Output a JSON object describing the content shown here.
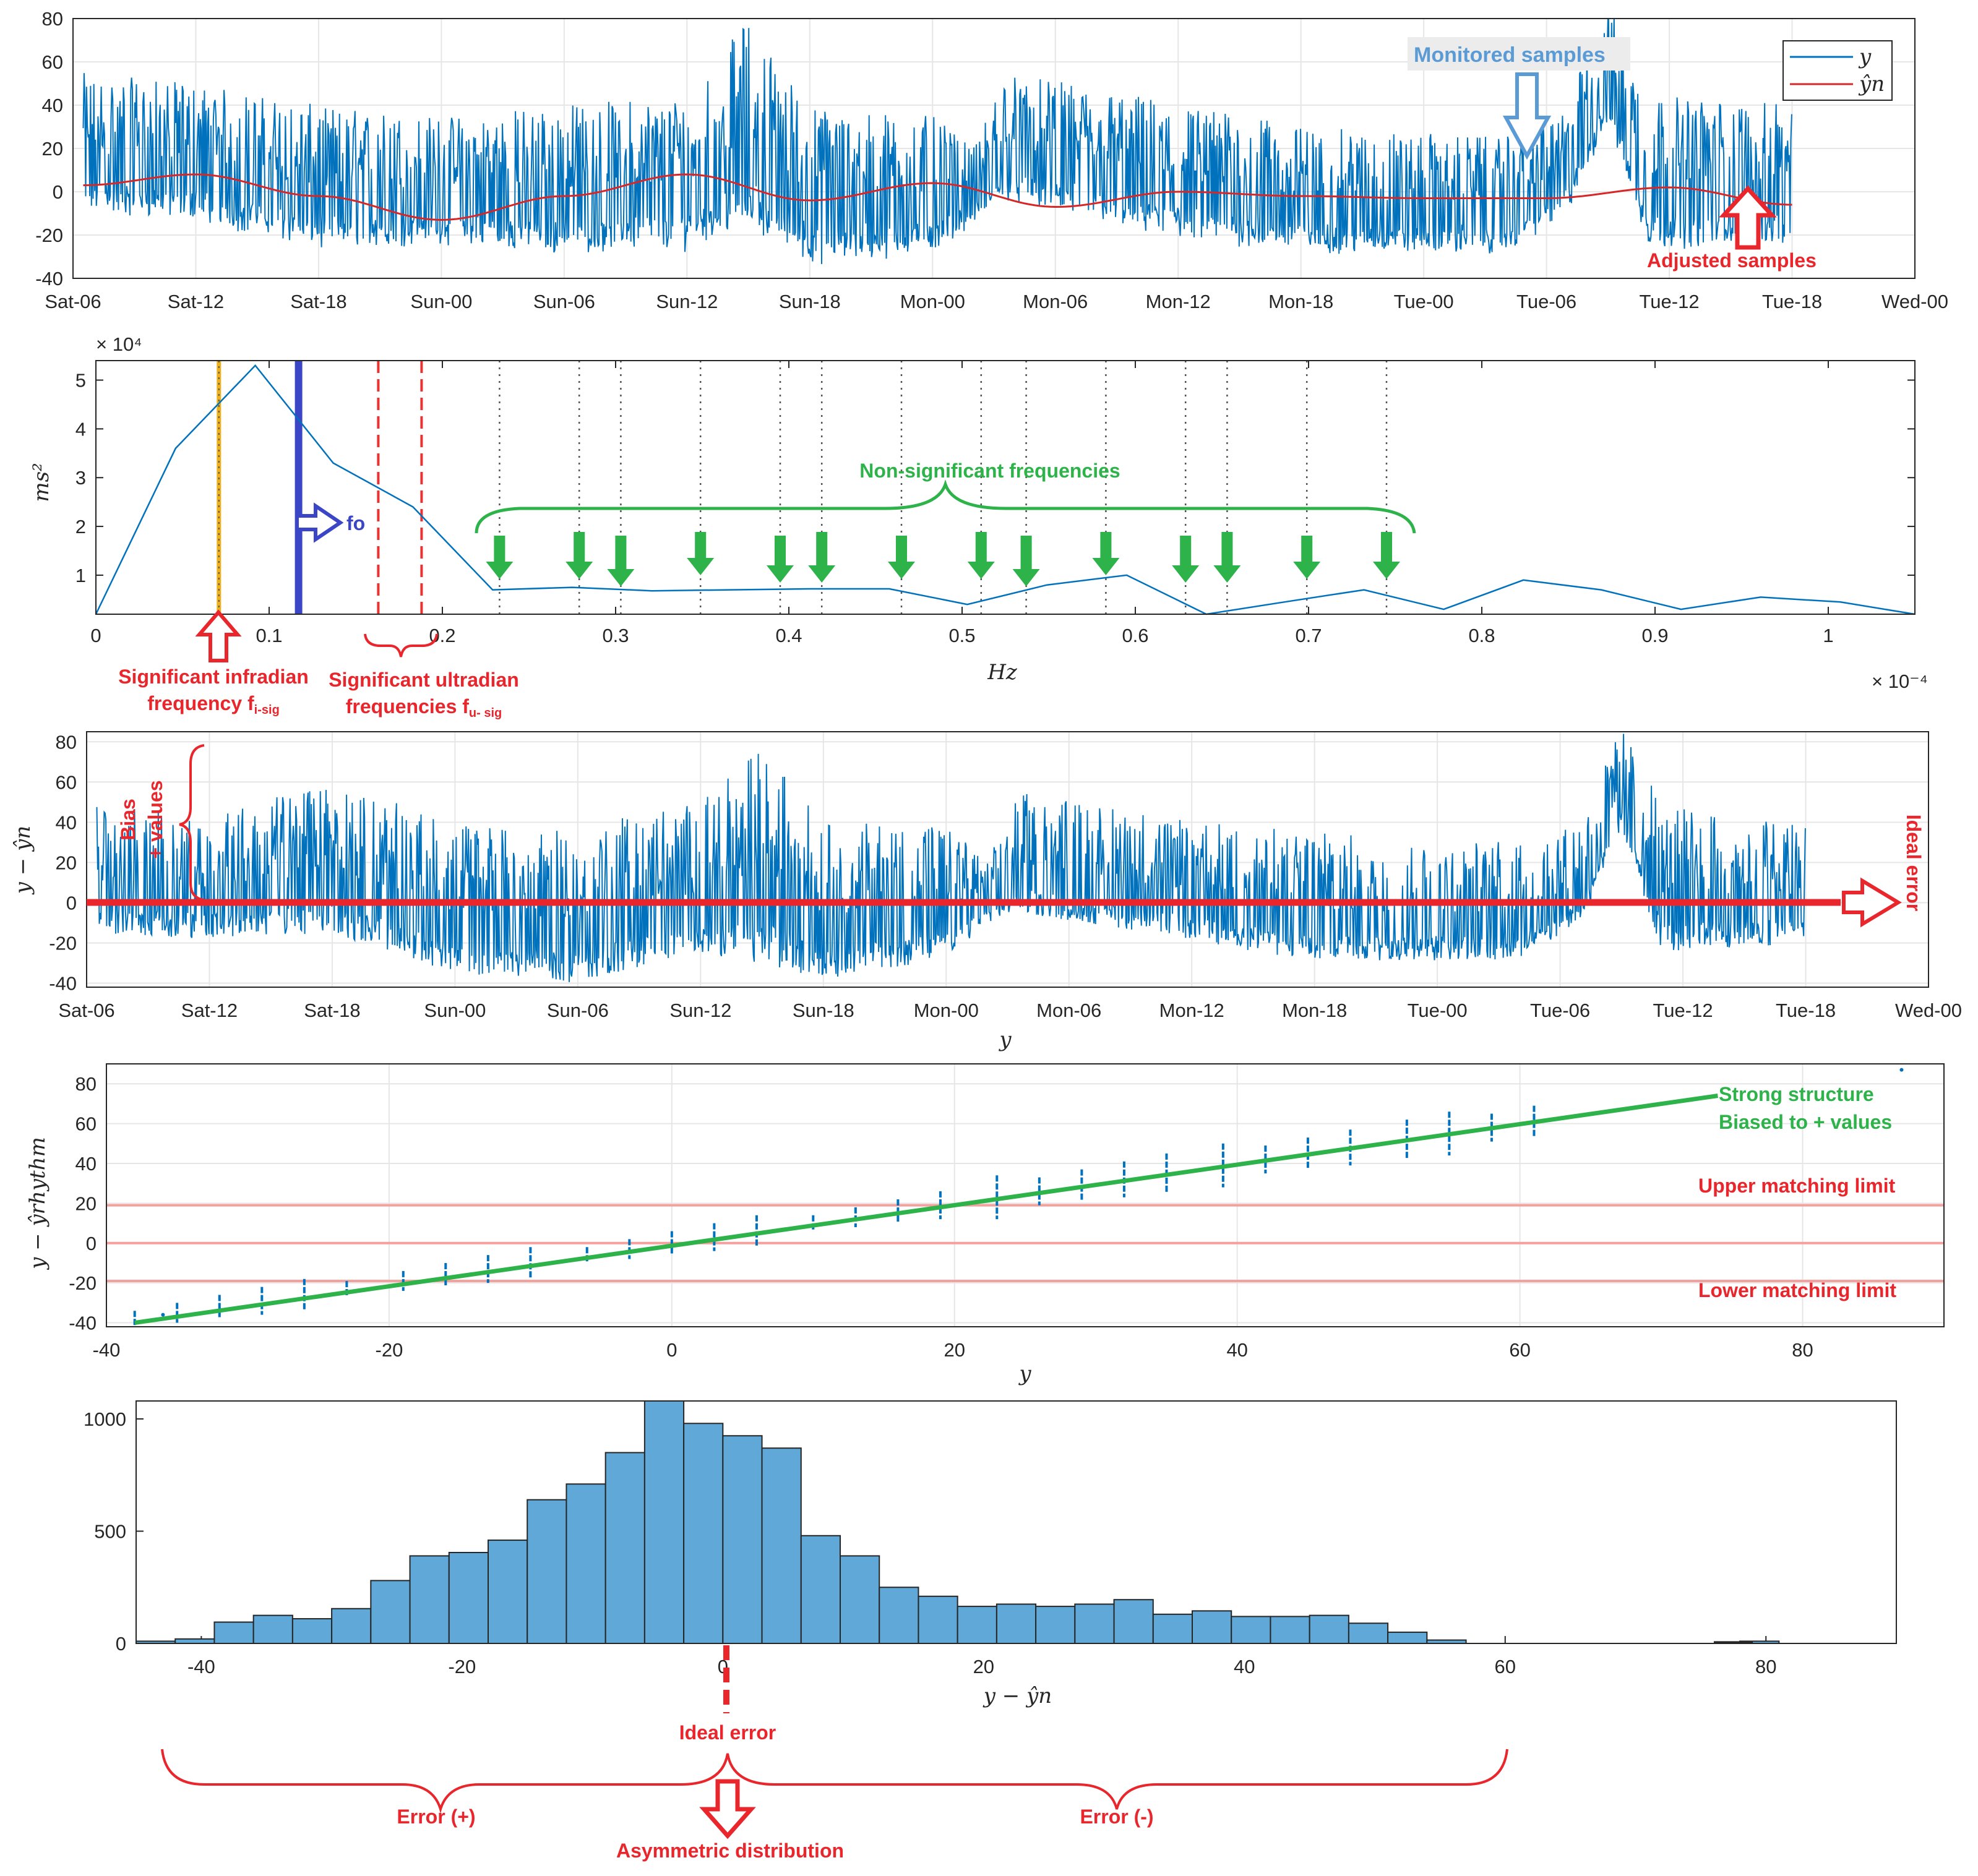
{
  "colors": {
    "signal": "#0072bd",
    "fit": "#d62728",
    "annotation_red": "#e8262c",
    "annotation_green": "#2db34a",
    "annotation_blue": "#5b9bd5",
    "bars": "#5fa8d8",
    "fo_line": "#3b46c6",
    "infradian": "#edb120"
  },
  "chart_data": [
    {
      "id": "timeseries",
      "type": "line",
      "x_ticks": [
        "Sat-06",
        "Sat-12",
        "Sat-18",
        "Sun-00",
        "Sun-06",
        "Sun-12",
        "Sun-18",
        "Mon-00",
        "Mon-06",
        "Mon-12",
        "Mon-18",
        "Tue-00",
        "Tue-06",
        "Tue-12",
        "Tue-18",
        "Wed-00"
      ],
      "ylim": [
        -40,
        80
      ],
      "y_ticks": [
        80,
        60,
        40,
        20,
        0,
        -20,
        -40
      ],
      "x_hours_range": [
        0,
        90
      ],
      "legend": {
        "placement": "top-right",
        "entries": [
          "y",
          "ŷn"
        ]
      },
      "series": [
        {
          "name": "y",
          "kind": "noisy-signal",
          "data_hours_range": [
            0.5,
            84
          ],
          "envelope": [
            [
              0.5,
              -12,
              55
            ],
            [
              6,
              -15,
              50
            ],
            [
              12,
              -28,
              40
            ],
            [
              18,
              -25,
              35
            ],
            [
              23,
              -30,
              40
            ],
            [
              30,
              -28,
              45
            ],
            [
              33,
              -20,
              80
            ],
            [
              36,
              -35,
              40
            ],
            [
              42,
              -30,
              35
            ],
            [
              44,
              -15,
              20
            ],
            [
              45.5,
              -5,
              55
            ],
            [
              52,
              -20,
              45
            ],
            [
              60,
              -30,
              30
            ],
            [
              70,
              -30,
              25
            ],
            [
              73,
              -12,
              40
            ],
            [
              75,
              30,
              90
            ],
            [
              77,
              -28,
              45
            ],
            [
              84,
              -25,
              40
            ]
          ]
        },
        {
          "name": "ŷn",
          "x": [
            0.5,
            6,
            12,
            18,
            24,
            30,
            36,
            42,
            48,
            54,
            60,
            66,
            72,
            78,
            84
          ],
          "values": [
            3,
            8,
            -2,
            -13,
            -2,
            8,
            -4,
            4,
            -7,
            0,
            -2,
            -3,
            -3,
            2,
            -6
          ]
        }
      ],
      "annotations": [
        "Monitored samples",
        "Adjusted samples"
      ]
    },
    {
      "id": "spectrum",
      "type": "line",
      "xlabel": "Hz",
      "ylabel": "ms²",
      "x_ticks": [
        "0",
        "0.1",
        "0.2",
        "0.3",
        "0.4",
        "0.5",
        "0.6",
        "0.7",
        "0.8",
        "0.9",
        "1"
      ],
      "y_ticks": [
        "5",
        "4",
        "3",
        "2",
        "1"
      ],
      "x_exponent": "× 10⁻⁴",
      "y_exponent": "× 10⁴",
      "xlim": [
        0,
        1.05
      ],
      "ylim": [
        0.2,
        5.4
      ],
      "x": [
        0,
        0.046,
        0.092,
        0.137,
        0.183,
        0.229,
        0.275,
        0.321,
        0.366,
        0.412,
        0.458,
        0.503,
        0.549,
        0.595,
        0.641,
        0.686,
        0.732,
        0.778,
        0.824,
        0.869,
        0.915,
        0.961,
        1.007,
        1.05
      ],
      "values": [
        0.2,
        3.6,
        5.3,
        3.3,
        2.4,
        0.7,
        0.75,
        0.68,
        0.7,
        0.72,
        0.72,
        0.4,
        0.8,
        1.0,
        0.2,
        0.45,
        0.7,
        0.3,
        0.9,
        0.7,
        0.3,
        0.55,
        0.45,
        0.2
      ],
      "infradian_line": 0.071,
      "fo_line": 0.117,
      "ultradian_lines": [
        0.163,
        0.188
      ],
      "non_significant_lines": [
        0.233,
        0.279,
        0.303,
        0.349,
        0.395,
        0.419,
        0.465,
        0.511,
        0.537,
        0.583,
        0.629,
        0.653,
        0.699,
        0.745
      ],
      "annotations": {
        "fo": "fo",
        "non_significant": "Non-significant frequencies",
        "infradian_line1": "Significant infradian",
        "infradian_line2": "frequency f",
        "infradian_sub": "i-sig",
        "ultradian_line1": "Significant ultradian",
        "ultradian_line2": "frequencies f",
        "ultradian_sub": "u- sig"
      }
    },
    {
      "id": "residual",
      "type": "line",
      "xlabel": "y",
      "ylabel": "y − ŷn",
      "x_ticks": [
        "Sat-06",
        "Sat-12",
        "Sat-18",
        "Sun-00",
        "Sun-06",
        "Sun-12",
        "Sun-18",
        "Mon-00",
        "Mon-06",
        "Mon-12",
        "Mon-18",
        "Tue-00",
        "Tue-06",
        "Tue-12",
        "Tue-18",
        "Wed-00"
      ],
      "ylim": [
        -42,
        85
      ],
      "y_ticks": [
        80,
        60,
        40,
        20,
        0,
        -20,
        -40
      ],
      "envelope": [
        [
          0.5,
          -15,
          50
        ],
        [
          6,
          -18,
          45
        ],
        [
          12,
          -15,
          60
        ],
        [
          18,
          -35,
          40
        ],
        [
          24,
          -40,
          35
        ],
        [
          27,
          -32,
          45
        ],
        [
          30,
          -25,
          50
        ],
        [
          33,
          -30,
          78
        ],
        [
          36,
          -38,
          40
        ],
        [
          42,
          -28,
          40
        ],
        [
          44,
          -10,
          20
        ],
        [
          45.5,
          -5,
          55
        ],
        [
          52,
          -15,
          45
        ],
        [
          60,
          -30,
          35
        ],
        [
          70,
          -28,
          30
        ],
        [
          73,
          -10,
          40
        ],
        [
          75,
          35,
          88
        ],
        [
          77,
          -25,
          48
        ],
        [
          84,
          -20,
          40
        ]
      ],
      "annotations": {
        "bias_line1": "Bias",
        "bias_line2": "+ values",
        "ideal": "Ideal error"
      }
    },
    {
      "id": "scatter",
      "type": "scatter",
      "xlabel": "y",
      "ylabel": "y − ŷrhythm",
      "xlim": [
        -40,
        90
      ],
      "ylim": [
        -42,
        90
      ],
      "x_ticks": [
        -40,
        -20,
        0,
        20,
        40,
        60,
        80
      ],
      "y_ticks": [
        80,
        60,
        40,
        20,
        0,
        -20,
        -40
      ],
      "clusters_x": [
        -38,
        -35,
        -32,
        -29,
        -26,
        -23,
        -19,
        -16,
        -13,
        -10,
        -6,
        -3,
        0,
        3,
        6,
        10,
        13,
        16,
        19,
        23,
        26,
        29,
        32,
        35,
        39,
        42,
        45,
        48,
        52,
        55,
        58,
        61
      ],
      "fit_line": [
        [
          -38,
          -40
        ],
        [
          74,
          74
        ]
      ],
      "matching_limits": [
        19,
        0,
        -19
      ],
      "annotations": {
        "strong1": "Strong structure",
        "strong2": "Biased to + values",
        "upper": "Upper matching limit",
        "lower": "Lower matching limit"
      }
    },
    {
      "id": "histogram",
      "type": "bar",
      "xlabel": "y − ŷn",
      "xlim": [
        -45,
        90
      ],
      "ylim": [
        0,
        1080
      ],
      "x_ticks": [
        -40,
        -20,
        0,
        20,
        40,
        60,
        80
      ],
      "y_ticks": [
        1000,
        500,
        0
      ],
      "bin_start": -45,
      "bin_width": 3,
      "counts": [
        10,
        20,
        95,
        125,
        110,
        155,
        280,
        390,
        405,
        460,
        640,
        710,
        850,
        1080,
        980,
        925,
        870,
        480,
        390,
        250,
        210,
        165,
        175,
        165,
        175,
        195,
        130,
        145,
        120,
        120,
        125,
        90,
        50,
        15,
        0,
        0,
        0,
        0,
        0,
        0,
        0,
        10,
        0,
        0,
        0
      ],
      "annotations": {
        "ideal": "Ideal error",
        "err_pos": "Error (+)",
        "err_neg": "Error (-)",
        "asym": "Asymmetric distribution"
      }
    }
  ]
}
